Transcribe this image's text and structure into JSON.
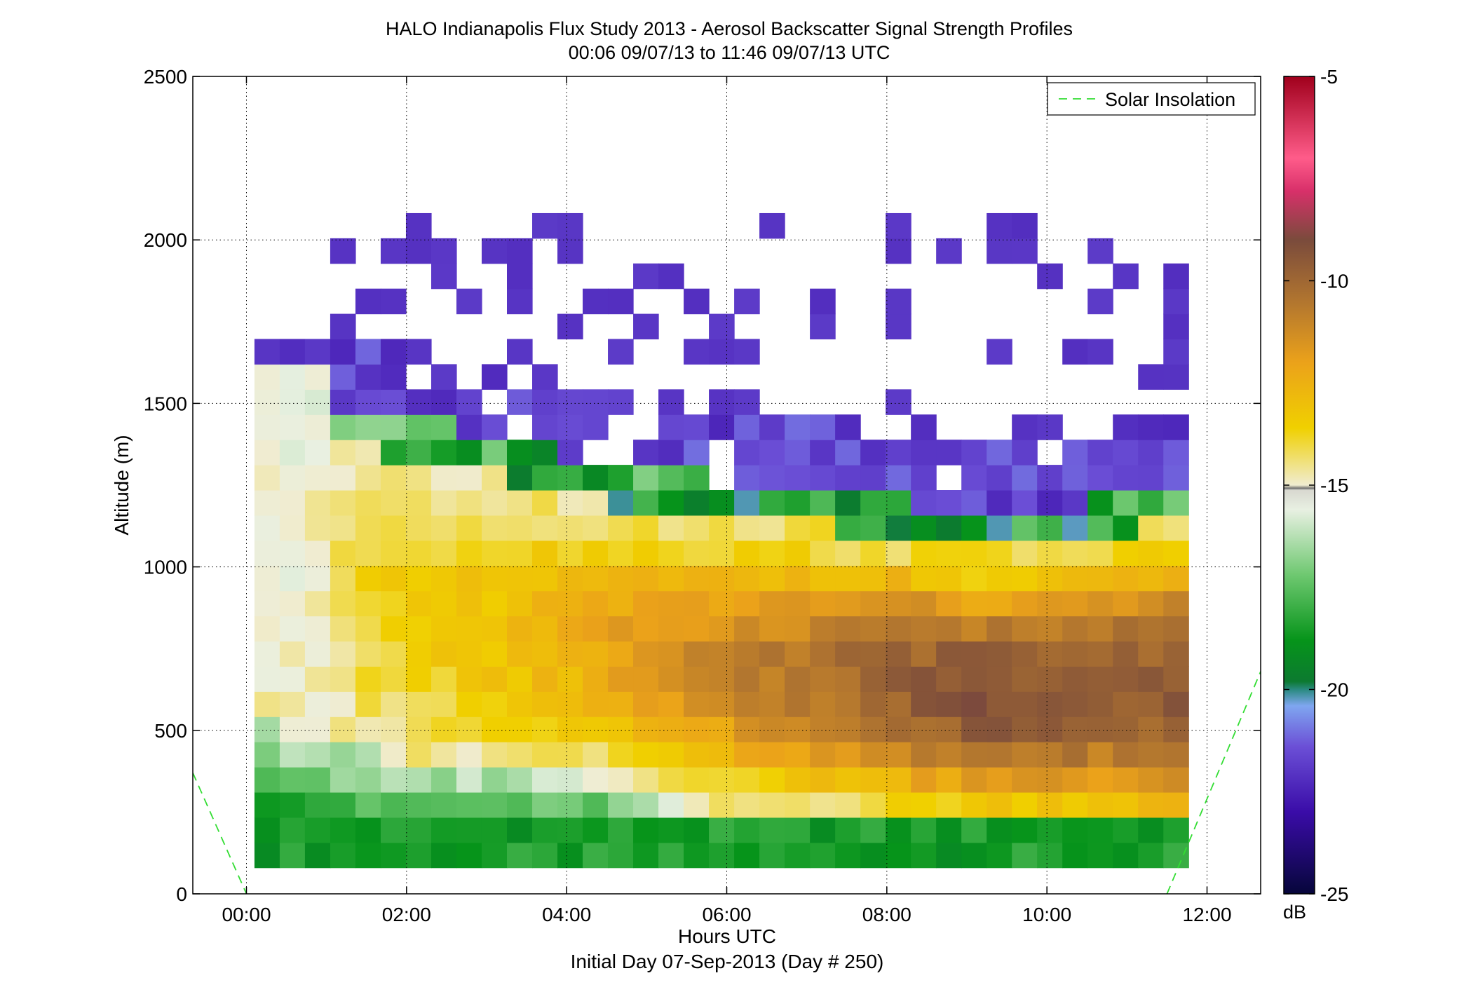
{
  "chart_data": {
    "type": "heatmap",
    "title": "HALO Indianapolis Flux Study 2013 - Aerosol Backscatter Signal Strength Profiles",
    "subtitle": "00:06 09/07/13 to 11:46 09/07/13  UTC",
    "xlabel": "Hours UTC",
    "xlabel2": "Initial Day 07-Sep-2013 (Day # 250)",
    "ylabel": "Altitude (m)",
    "x_ticks": [
      "00:00",
      "02:00",
      "04:00",
      "06:00",
      "08:00",
      "10:00",
      "12:00"
    ],
    "x_tick_hours": [
      0,
      2,
      4,
      6,
      8,
      10,
      12
    ],
    "xlim_hours": [
      -0.67,
      12.67
    ],
    "y_ticks": [
      "0",
      "500",
      "1000",
      "1500",
      "2000",
      "2500"
    ],
    "ylim": [
      0,
      2500
    ],
    "grid": true,
    "colorbar": {
      "label": "dB",
      "range": [
        -25,
        -5
      ],
      "tick_labels": [
        "-5",
        "-10",
        "-15",
        "-20",
        "-25"
      ],
      "tick_values": [
        -5,
        -10,
        -15,
        -20,
        -25
      ]
    },
    "legend": {
      "entries": [
        "Solar Insolation"
      ],
      "placement": "top-right"
    },
    "solar_insolation": {
      "segments": [
        [
          [
            -0.67,
            370
          ],
          [
            0.0,
            0
          ]
        ],
        [
          [
            11.5,
            0
          ],
          [
            12.67,
            680
          ]
        ]
      ]
    },
    "data_grid": {
      "time_start_hours": 0.1,
      "time_end_hours": 11.77,
      "n_columns": 37,
      "altitude_bin_m": 77,
      "first_bin_center_m": 104,
      "unit": "dB",
      "approximate": true,
      "note_values": "values estimated from the colour scale"
    }
  }
}
